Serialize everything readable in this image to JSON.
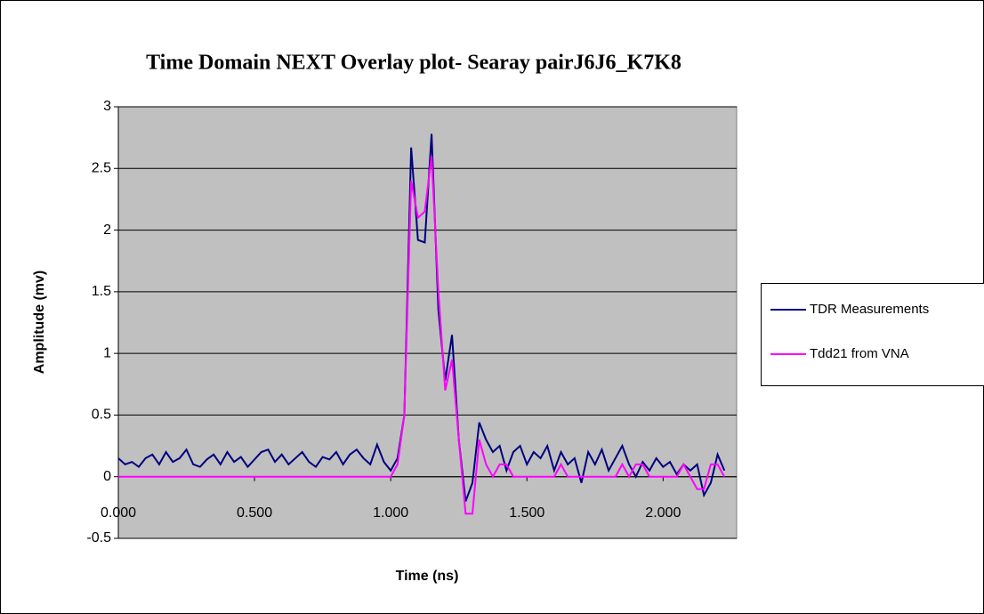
{
  "chart_data": {
    "type": "line",
    "title": "Time Domain NEXT Overlay plot- Searay pairJ6J6_K7K8",
    "x_label": "Time (ns)",
    "y_label": "Amplitude (mv)",
    "x": [
      0,
      0.025,
      0.05,
      0.075,
      0.1,
      0.125,
      0.15,
      0.175,
      0.2,
      0.225,
      0.25,
      0.275,
      0.3,
      0.325,
      0.35,
      0.375,
      0.4,
      0.425,
      0.45,
      0.475,
      0.5,
      0.525,
      0.55,
      0.575,
      0.6,
      0.625,
      0.65,
      0.675,
      0.7,
      0.725,
      0.75,
      0.775,
      0.8,
      0.825,
      0.85,
      0.875,
      0.9,
      0.925,
      0.95,
      0.975,
      1.0,
      1.025,
      1.05,
      1.075,
      1.1,
      1.125,
      1.15,
      1.175,
      1.2,
      1.225,
      1.25,
      1.275,
      1.3,
      1.325,
      1.35,
      1.375,
      1.4,
      1.425,
      1.45,
      1.475,
      1.5,
      1.525,
      1.55,
      1.575,
      1.6,
      1.625,
      1.65,
      1.675,
      1.7,
      1.725,
      1.75,
      1.775,
      1.8,
      1.825,
      1.85,
      1.875,
      1.9,
      1.925,
      1.95,
      1.975,
      2.0,
      2.025,
      2.05,
      2.075,
      2.1,
      2.125,
      2.15,
      2.175,
      2.2,
      2.225
    ],
    "series": [
      {
        "name": "TDR Measurements",
        "color": "#000080",
        "values": [
          0.15,
          0.1,
          0.12,
          0.08,
          0.15,
          0.18,
          0.1,
          0.2,
          0.12,
          0.15,
          0.22,
          0.1,
          0.08,
          0.14,
          0.18,
          0.1,
          0.2,
          0.12,
          0.16,
          0.08,
          0.14,
          0.2,
          0.22,
          0.12,
          0.18,
          0.1,
          0.15,
          0.2,
          0.12,
          0.08,
          0.16,
          0.14,
          0.2,
          0.1,
          0.18,
          0.22,
          0.15,
          0.1,
          0.26,
          0.12,
          0.05,
          0.15,
          0.5,
          2.67,
          1.92,
          1.9,
          2.78,
          1.35,
          0.78,
          1.15,
          0.3,
          -0.2,
          -0.05,
          0.44,
          0.3,
          0.2,
          0.25,
          0.05,
          0.2,
          0.25,
          0.1,
          0.2,
          0.15,
          0.25,
          0.05,
          0.2,
          0.1,
          0.15,
          -0.05,
          0.2,
          0.1,
          0.22,
          0.05,
          0.15,
          0.25,
          0.1,
          0.0,
          0.12,
          0.05,
          0.15,
          0.08,
          0.12,
          0.02,
          0.1,
          0.05,
          0.1,
          -0.15,
          -0.05,
          0.18,
          0.05
        ]
      },
      {
        "name": "Tdd21 from VNA",
        "color": "#ff00ff",
        "values": [
          0,
          0,
          0,
          0,
          0,
          0,
          0,
          0,
          0,
          0,
          0,
          0,
          0,
          0,
          0,
          0,
          0,
          0,
          0,
          0,
          0,
          0,
          0,
          0,
          0,
          0,
          0,
          0,
          0,
          0,
          0,
          0,
          0,
          0,
          0,
          0,
          0,
          0,
          0,
          0,
          0,
          0.1,
          0.5,
          2.4,
          2.1,
          2.15,
          2.6,
          1.5,
          0.7,
          0.95,
          0.3,
          -0.3,
          -0.3,
          0.3,
          0.1,
          0,
          0.1,
          0.1,
          0,
          0,
          0,
          0,
          0,
          0,
          0,
          0.1,
          0,
          0,
          0,
          0,
          0,
          0,
          0,
          0,
          0.1,
          0,
          0.1,
          0.1,
          0,
          0,
          0,
          0,
          0,
          0.1,
          0,
          -0.1,
          -0.1,
          0.1,
          0.1,
          0
        ]
      }
    ],
    "xlim": [
      0,
      2.27
    ],
    "ylim": [
      -0.5,
      3
    ],
    "xticks": [
      {
        "value": 0,
        "label": "0.000"
      },
      {
        "value": 0.5,
        "label": "0.500"
      },
      {
        "value": 1,
        "label": "1.000"
      },
      {
        "value": 1.5,
        "label": "1.500"
      },
      {
        "value": 2,
        "label": "2.000"
      }
    ],
    "yticks": [
      -0.5,
      0,
      0.5,
      1,
      1.5,
      2,
      2.5,
      3
    ],
    "grid": true,
    "legend": "right"
  }
}
